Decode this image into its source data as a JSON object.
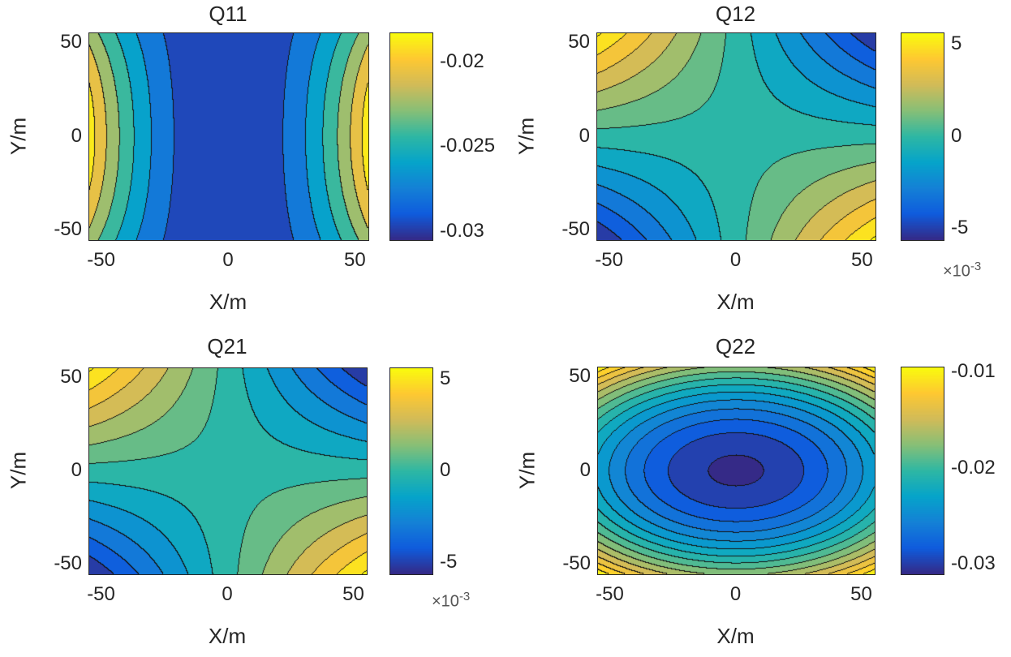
{
  "chart_data": [
    {
      "type": "contour",
      "title": "Q11",
      "xlabel": "X/m",
      "ylabel": "Y/m",
      "xlim": [
        -55,
        55
      ],
      "ylim": [
        -55,
        55
      ],
      "xticks": [
        "-50",
        "0",
        "50"
      ],
      "yticks": [
        "50",
        "0",
        "-50"
      ],
      "colorbar": {
        "range": [
          -0.0305,
          -0.0183
        ],
        "ticks": [
          "-0.02",
          "-0.025",
          "-0.03"
        ],
        "tick_values": [
          -0.02,
          -0.025,
          -0.03
        ],
        "exponent": ""
      },
      "levels": {
        "min": -0.0305,
        "step": 0.0018
      },
      "model": {
        "kind": "q11",
        "base": -0.0305,
        "amp": 0.0118,
        "ycoef": 0.3
      }
    },
    {
      "type": "contour",
      "title": "Q12",
      "xlabel": "X/m",
      "ylabel": "Y/m",
      "xlim": [
        -55,
        55
      ],
      "ylim": [
        -55,
        55
      ],
      "xticks": [
        "-50",
        "0",
        "50"
      ],
      "yticks": [
        "50",
        "0",
        "-50"
      ],
      "colorbar": {
        "range": [
          -5.6,
          5.6
        ],
        "ticks": [
          "5",
          "0",
          "-5"
        ],
        "tick_values": [
          5,
          0,
          -5
        ],
        "exponent": "×10",
        "exponent_power": "-3"
      },
      "levels": {
        "min": -5.6,
        "step": 1.0
      },
      "model": {
        "kind": "saddle",
        "amp": -5.6
      }
    },
    {
      "type": "contour",
      "title": "Q21",
      "xlabel": "X/m",
      "ylabel": "Y/m",
      "xlim": [
        -55,
        55
      ],
      "ylim": [
        -55,
        55
      ],
      "xticks": [
        "-50",
        "0",
        "50"
      ],
      "yticks": [
        "50",
        "0",
        "-50"
      ],
      "colorbar": {
        "range": [
          -5.6,
          5.6
        ],
        "ticks": [
          "5",
          "0",
          "-5"
        ],
        "tick_values": [
          5,
          0,
          -5
        ],
        "exponent": "×10",
        "exponent_power": "-3"
      },
      "levels": {
        "min": -5.6,
        "step": 1.0
      },
      "model": {
        "kind": "saddle",
        "amp": -5.6
      }
    },
    {
      "type": "contour",
      "title": "Q22",
      "xlabel": "X/m",
      "ylabel": "Y/m",
      "xlim": [
        -55,
        55
      ],
      "ylim": [
        -55,
        55
      ],
      "xticks": [
        "-50",
        "0",
        "50"
      ],
      "yticks": [
        "50",
        "0",
        "-50"
      ],
      "colorbar": {
        "range": [
          -0.031,
          -0.0095
        ],
        "ticks": [
          "-0.01",
          "-0.02",
          "-0.03"
        ],
        "tick_values": [
          -0.01,
          -0.02,
          -0.03
        ],
        "exponent": ""
      },
      "levels": {
        "min": -0.0305,
        "step": 0.0015
      },
      "model": {
        "kind": "bowl",
        "base": -0.0308,
        "ax": 0.0075,
        "ay": 0.0135
      }
    }
  ],
  "colors": {
    "axis": "#262626",
    "line": "#000000"
  }
}
